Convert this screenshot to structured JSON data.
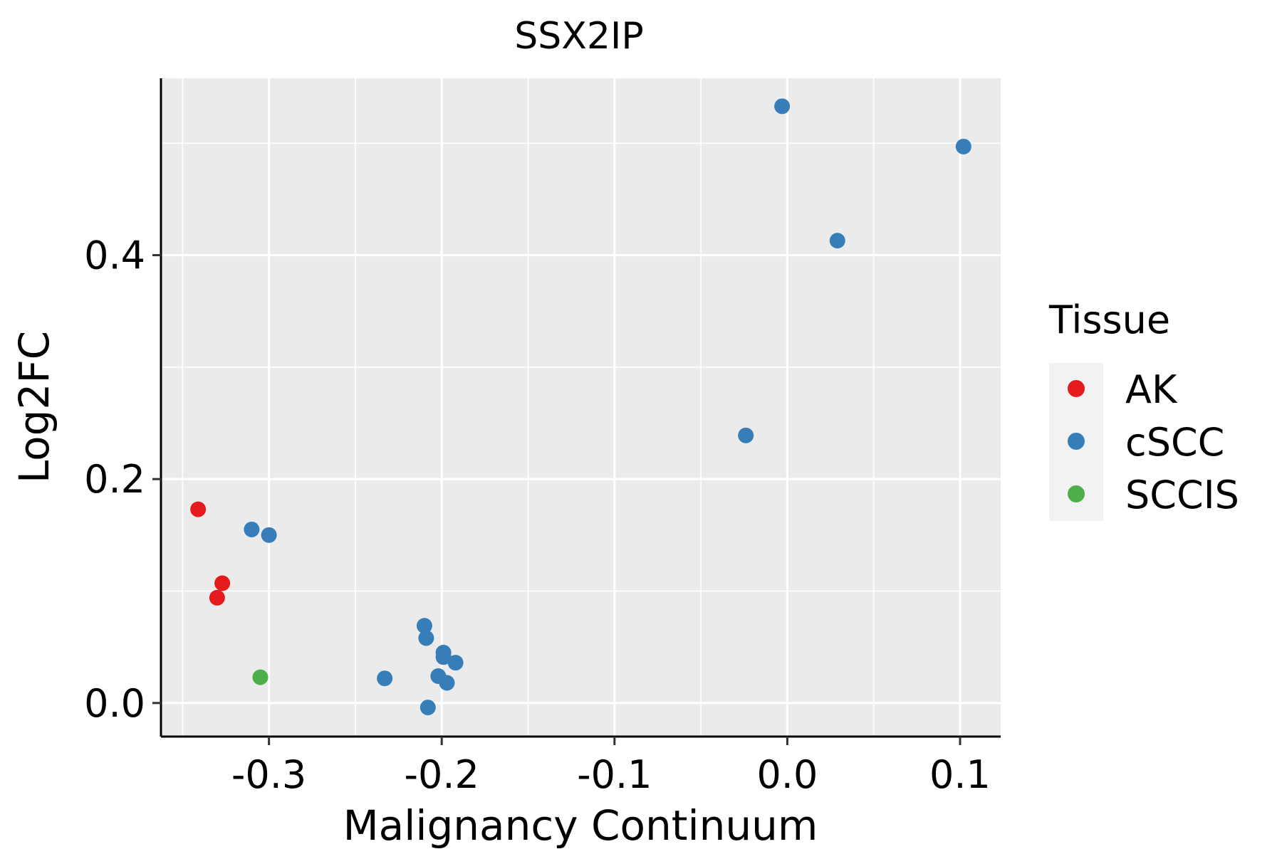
{
  "chart_data": {
    "type": "scatter",
    "title": "SSX2IP",
    "xlabel": "Malignancy Continuum",
    "ylabel": "Log2FC",
    "xlim": [
      -0.3625,
      0.1235
    ],
    "ylim": [
      -0.03,
      0.558
    ],
    "x_ticks": [
      -0.3,
      -0.2,
      -0.1,
      0.0,
      0.1
    ],
    "x_tick_labels": [
      "-0.3",
      "-0.2",
      "-0.1",
      "0.0",
      "0.1"
    ],
    "y_ticks": [
      0.0,
      0.2,
      0.4
    ],
    "y_tick_labels": [
      "0.0",
      "0.2",
      "0.4"
    ],
    "legend": {
      "title": "Tissue",
      "position": "right",
      "entries": [
        {
          "label": "AK",
          "color": "#E41A1C"
        },
        {
          "label": "cSCC",
          "color": "#377EB8"
        },
        {
          "label": "SCCIS",
          "color": "#4DAF4A"
        }
      ]
    },
    "series": [
      {
        "name": "AK",
        "color": "#E41A1C",
        "points": [
          {
            "x": -0.341,
            "y": 0.173
          },
          {
            "x": -0.327,
            "y": 0.107
          },
          {
            "x": -0.33,
            "y": 0.094
          }
        ]
      },
      {
        "name": "cSCC",
        "color": "#377EB8",
        "points": [
          {
            "x": -0.31,
            "y": 0.155
          },
          {
            "x": -0.3,
            "y": 0.15
          },
          {
            "x": -0.21,
            "y": 0.069
          },
          {
            "x": -0.209,
            "y": 0.058
          },
          {
            "x": -0.199,
            "y": 0.045
          },
          {
            "x": -0.199,
            "y": 0.041
          },
          {
            "x": -0.192,
            "y": 0.036
          },
          {
            "x": -0.202,
            "y": 0.024
          },
          {
            "x": -0.197,
            "y": 0.018
          },
          {
            "x": -0.233,
            "y": 0.022
          },
          {
            "x": -0.208,
            "y": -0.004
          },
          {
            "x": -0.024,
            "y": 0.239
          },
          {
            "x": -0.003,
            "y": 0.533
          },
          {
            "x": 0.029,
            "y": 0.413
          },
          {
            "x": 0.102,
            "y": 0.497
          }
        ]
      },
      {
        "name": "SCCIS",
        "color": "#4DAF4A",
        "points": [
          {
            "x": -0.305,
            "y": 0.023
          }
        ]
      }
    ]
  }
}
